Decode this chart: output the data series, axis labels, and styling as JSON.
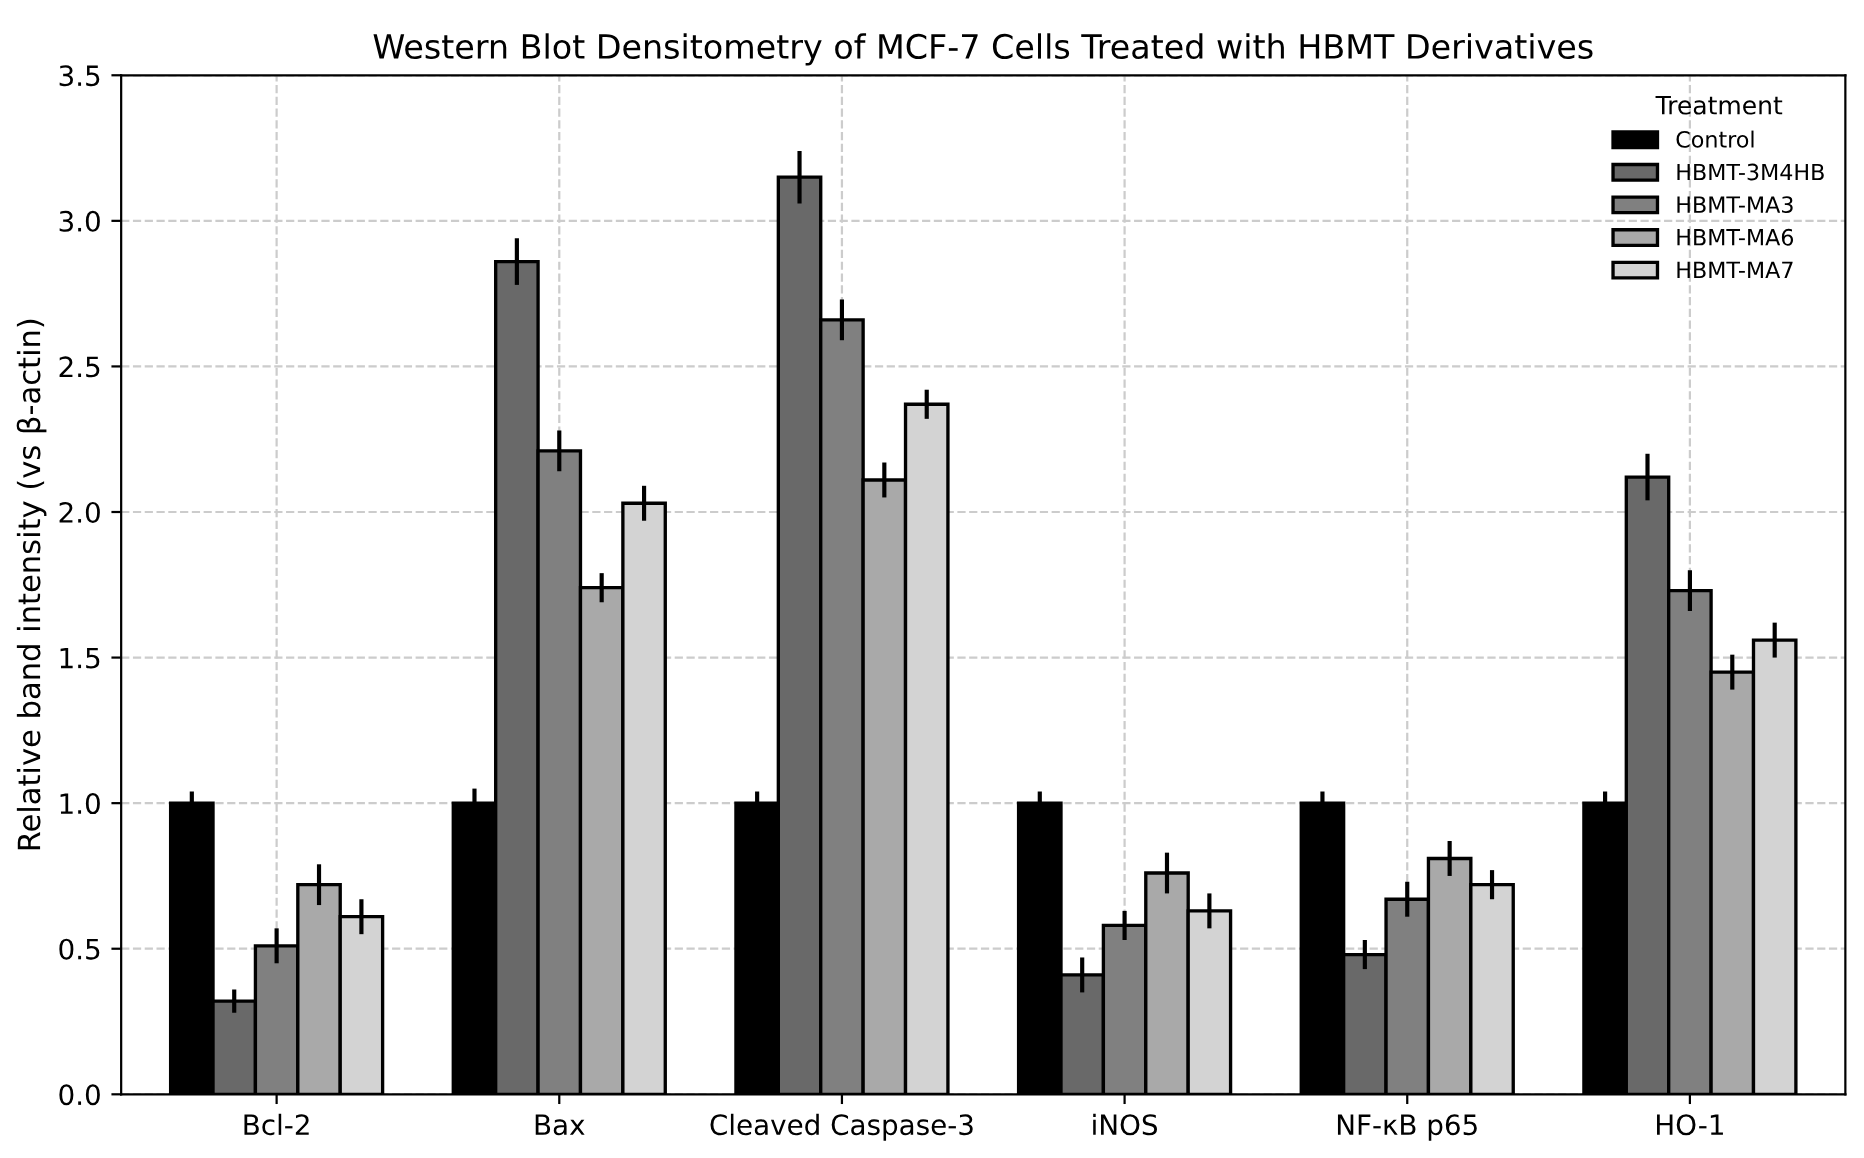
{
  "chart_data": {
    "type": "bar",
    "title": "Western Blot Densitometry of MCF-7 Cells Treated with HBMT Derivatives",
    "ylabel": "Relative band intensity (vs β-actin)",
    "legend_title": "Treatment",
    "categories": [
      "Bcl-2",
      "Bax",
      "Cleaved Caspase-3",
      "iNOS",
      "NF-κB p65",
      "HO-1"
    ],
    "series": [
      {
        "name": "Control",
        "color": "#000000",
        "values": [
          1.0,
          1.0,
          1.0,
          1.0,
          1.0,
          1.0
        ],
        "errors": [
          0.04,
          0.05,
          0.04,
          0.04,
          0.04,
          0.04
        ]
      },
      {
        "name": "HBMT-3M4HB",
        "color": "#696969",
        "values": [
          0.32,
          2.86,
          3.15,
          0.41,
          0.48,
          2.12
        ],
        "errors": [
          0.04,
          0.08,
          0.09,
          0.06,
          0.05,
          0.08
        ]
      },
      {
        "name": "HBMT-MA3",
        "color": "#808080",
        "values": [
          0.51,
          2.21,
          2.66,
          0.58,
          0.67,
          1.73
        ],
        "errors": [
          0.06,
          0.07,
          0.07,
          0.05,
          0.06,
          0.07
        ]
      },
      {
        "name": "HBMT-MA6",
        "color": "#a9a9a9",
        "values": [
          0.72,
          1.74,
          2.11,
          0.76,
          0.81,
          1.45
        ],
        "errors": [
          0.07,
          0.05,
          0.06,
          0.07,
          0.06,
          0.06
        ]
      },
      {
        "name": "HBMT-MA7",
        "color": "#d3d3d3",
        "values": [
          0.61,
          2.03,
          2.37,
          0.63,
          0.72,
          1.56
        ],
        "errors": [
          0.06,
          0.06,
          0.05,
          0.06,
          0.05,
          0.06
        ]
      }
    ],
    "ylim": [
      0,
      3.5
    ],
    "yticks": [
      {
        "value": 0,
        "label": "0.0"
      },
      0.5,
      {
        "value": 1,
        "label": "1.0"
      },
      1.5,
      {
        "value": 2,
        "label": "2.0"
      },
      2.5,
      {
        "value": 3,
        "label": "3.0"
      },
      3.5
    ],
    "grid": true,
    "legend": "top right"
  }
}
